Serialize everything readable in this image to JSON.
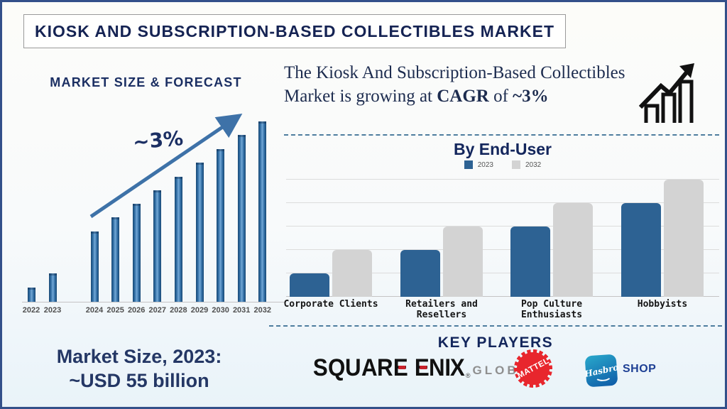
{
  "title": "KIOSK AND SUBSCRIPTION-BASED COLLECTIBLES MARKET",
  "left_chart": {
    "heading": "MARKET SIZE & FORECAST",
    "growth_annotation": "~3%",
    "caption_line1": "Market Size, 2023:",
    "caption_line2": "~USD 55 billion"
  },
  "cagr_block": {
    "text_before_bold": "The Kiosk And Subscription-Based Collectibles Market is growing at ",
    "bold_term": "CAGR",
    "text_middle": " of ",
    "bold_value": "~3%"
  },
  "end_user_chart": {
    "title": "By End-User",
    "legend": [
      {
        "label": "2023",
        "color": "#2d6293"
      },
      {
        "label": "2032",
        "color": "#d3d3d3"
      }
    ]
  },
  "key_players": {
    "heading": "KEY PLAYERS",
    "players": [
      {
        "name": "SQUARE ENIX",
        "registered": "®",
        "suffix": "GLOBAL"
      },
      {
        "name": "MATTEL"
      },
      {
        "name": "Hasbro",
        "suffix": "SHOP"
      }
    ]
  },
  "chart_data": [
    {
      "type": "bar",
      "title": "MARKET SIZE & FORECAST",
      "x": [
        "2022",
        "2023",
        "2024",
        "2025",
        "2026",
        "2027",
        "2028",
        "2029",
        "2030",
        "2031",
        "2032"
      ],
      "values_relative": [
        20,
        40,
        99,
        119,
        138,
        157,
        176,
        196,
        215,
        235,
        254
      ],
      "annotation": "~3%",
      "note": "y-axis unlabeled; values are relative bar heights; CAGR ~3%; market size 2023 ~USD 55 billion",
      "bar_color": "#2e6da4",
      "grid": false,
      "legend_position": "none"
    },
    {
      "type": "bar",
      "title": "By End-User",
      "categories": [
        "Corporate Clients",
        "Retailers and Resellers",
        "Pop Culture Enthusiasts",
        "Hobbyists"
      ],
      "series": [
        {
          "name": "2023",
          "color": "#2d6293",
          "values": [
            1,
            2,
            3,
            4
          ]
        },
        {
          "name": "2032",
          "color": "#d3d3d3",
          "values": [
            2,
            3,
            4,
            5
          ]
        }
      ],
      "ylim": [
        0,
        5
      ],
      "note": "y-axis unlabeled; values in gridline units (6 horizontal gridlines, 5 intervals)",
      "grid": true,
      "legend_position": "top"
    }
  ]
}
